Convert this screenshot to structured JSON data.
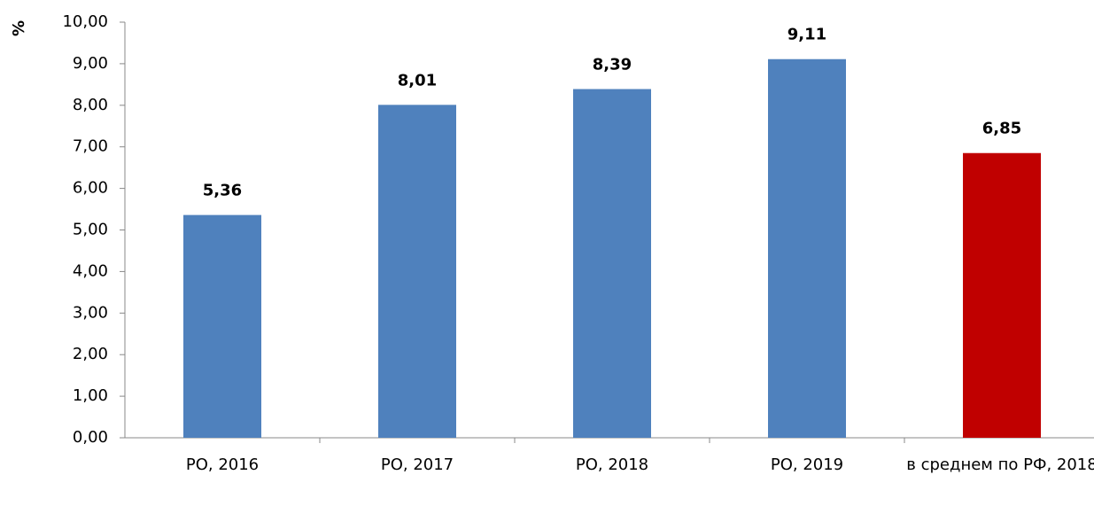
{
  "chart_data": {
    "type": "bar",
    "y_label": "%",
    "categories": [
      "РО, 2016",
      "РО, 2017",
      "РО, 2018",
      "РО, 2019",
      "в среднем по РФ, 2018"
    ],
    "values": [
      5.36,
      8.01,
      8.39,
      9.11,
      6.85
    ],
    "value_labels": [
      "5,36",
      "8,01",
      "8,39",
      "9,11",
      "6,85"
    ],
    "colors": [
      "#4f81bd",
      "#4f81bd",
      "#4f81bd",
      "#4f81bd",
      "#c00000"
    ],
    "ylim": [
      0,
      10
    ],
    "yticks": [
      {
        "value": 0,
        "label": "0,00"
      },
      {
        "value": 1,
        "label": "1,00"
      },
      {
        "value": 2,
        "label": "2,00"
      },
      {
        "value": 3,
        "label": "3,00"
      },
      {
        "value": 4,
        "label": "4,00"
      },
      {
        "value": 5,
        "label": "5,00"
      },
      {
        "value": 6,
        "label": "6,00"
      },
      {
        "value": 7,
        "label": "7,00"
      },
      {
        "value": 8,
        "label": "8,00"
      },
      {
        "value": 9,
        "label": "9,00"
      },
      {
        "value": 10,
        "label": "10,00"
      }
    ],
    "grid": false
  }
}
